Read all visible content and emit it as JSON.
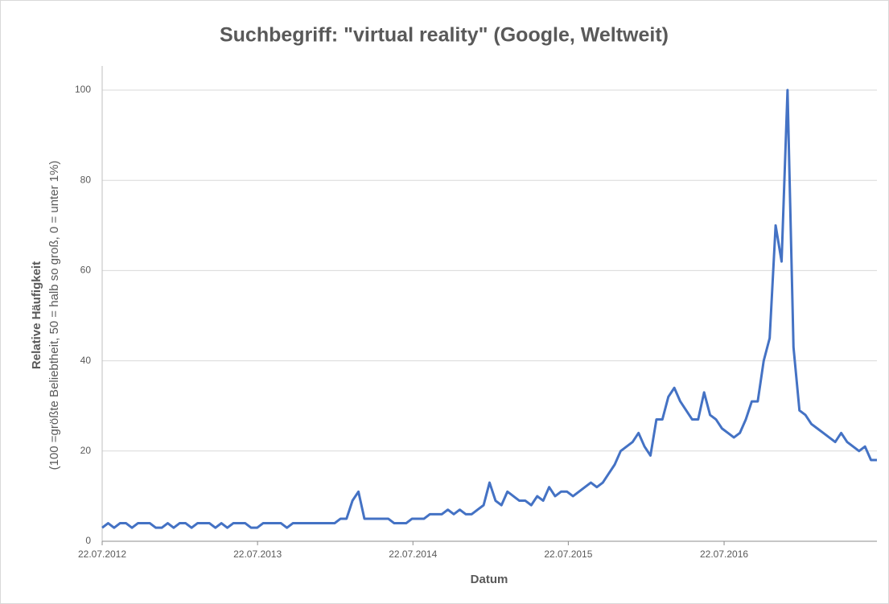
{
  "chart_data": {
    "type": "line",
    "title": "Suchbegriff: \"virtual reality\" (Google, Weltweit)",
    "x_label": "Datum",
    "y_label": "Relative Häufigkeit",
    "y_label_sub": "(100 =größte Beliebtheit, 50 = halb so groß, 0 = unter 1%)",
    "x": [
      "2012-07-22",
      "2012-08-05",
      "2012-08-19",
      "2012-09-02",
      "2012-09-16",
      "2012-09-30",
      "2012-10-14",
      "2012-10-28",
      "2012-11-11",
      "2012-11-25",
      "2012-12-09",
      "2012-12-23",
      "2013-01-06",
      "2013-01-20",
      "2013-02-03",
      "2013-02-17",
      "2013-03-03",
      "2013-03-17",
      "2013-03-31",
      "2013-04-14",
      "2013-04-28",
      "2013-05-12",
      "2013-05-26",
      "2013-06-09",
      "2013-06-23",
      "2013-07-07",
      "2013-07-21",
      "2013-08-04",
      "2013-08-18",
      "2013-09-01",
      "2013-09-15",
      "2013-09-29",
      "2013-10-13",
      "2013-10-27",
      "2013-11-10",
      "2013-11-24",
      "2013-12-08",
      "2013-12-22",
      "2014-01-05",
      "2014-01-19",
      "2014-02-02",
      "2014-02-16",
      "2014-03-02",
      "2014-03-16",
      "2014-03-30",
      "2014-04-13",
      "2014-04-27",
      "2014-05-11",
      "2014-05-25",
      "2014-06-08",
      "2014-06-22",
      "2014-07-06",
      "2014-07-20",
      "2014-08-03",
      "2014-08-17",
      "2014-08-31",
      "2014-09-14",
      "2014-09-28",
      "2014-10-12",
      "2014-10-26",
      "2014-11-09",
      "2014-11-23",
      "2014-12-07",
      "2014-12-21",
      "2015-01-04",
      "2015-01-18",
      "2015-02-01",
      "2015-02-15",
      "2015-03-01",
      "2015-03-15",
      "2015-03-29",
      "2015-04-12",
      "2015-04-26",
      "2015-05-10",
      "2015-05-24",
      "2015-06-07",
      "2015-06-21",
      "2015-07-05",
      "2015-07-19",
      "2015-08-02",
      "2015-08-16",
      "2015-08-30",
      "2015-09-13",
      "2015-09-27",
      "2015-10-11",
      "2015-10-25",
      "2015-11-08",
      "2015-11-22",
      "2015-12-06",
      "2015-12-20",
      "2016-01-03",
      "2016-01-17",
      "2016-01-31",
      "2016-02-14",
      "2016-02-28",
      "2016-03-13",
      "2016-03-27",
      "2016-04-10",
      "2016-04-24",
      "2016-05-08",
      "2016-05-22",
      "2016-06-05",
      "2016-06-19",
      "2016-07-03",
      "2016-07-17",
      "2016-07-31",
      "2016-08-14",
      "2016-08-28",
      "2016-09-11",
      "2016-09-25",
      "2016-10-09",
      "2016-10-23",
      "2016-11-06",
      "2016-11-20",
      "2016-12-04",
      "2016-12-18",
      "2017-01-01",
      "2017-01-15",
      "2017-01-29",
      "2017-02-12",
      "2017-02-26",
      "2017-03-12",
      "2017-03-26",
      "2017-04-09",
      "2017-04-23",
      "2017-05-07",
      "2017-05-21",
      "2017-06-04",
      "2017-06-18",
      "2017-07-02",
      "2017-07-16"
    ],
    "series": [
      {
        "name": "virtual reality",
        "color": "#4472c4",
        "values": [
          3,
          4,
          3,
          4,
          4,
          3,
          4,
          4,
          4,
          3,
          3,
          4,
          3,
          4,
          4,
          3,
          4,
          4,
          4,
          3,
          4,
          3,
          4,
          4,
          4,
          3,
          3,
          4,
          4,
          4,
          4,
          3,
          4,
          4,
          4,
          4,
          4,
          4,
          4,
          4,
          5,
          5,
          9,
          11,
          5,
          5,
          5,
          5,
          5,
          4,
          4,
          4,
          5,
          5,
          5,
          6,
          6,
          6,
          7,
          6,
          7,
          6,
          6,
          7,
          8,
          13,
          9,
          8,
          11,
          10,
          9,
          9,
          8,
          10,
          9,
          12,
          10,
          11,
          11,
          10,
          11,
          12,
          13,
          12,
          13,
          15,
          17,
          20,
          21,
          22,
          24,
          21,
          19,
          27,
          27,
          32,
          34,
          31,
          29,
          27,
          27,
          33,
          28,
          27,
          25,
          24,
          23,
          24,
          27,
          31,
          31,
          40,
          45,
          70,
          62,
          100,
          43,
          29,
          28,
          26,
          25,
          24,
          23,
          22,
          24,
          22,
          21,
          20,
          21,
          18,
          18
        ]
      }
    ],
    "xlim": [
      "2012-07-22",
      "2017-07-16"
    ],
    "xticks": [
      {
        "value": "2012-07-22",
        "label": "22.07.2012"
      },
      {
        "value": "2013-07-22",
        "label": "22.07.2013"
      },
      {
        "value": "2014-07-22",
        "label": "22.07.2014"
      },
      {
        "value": "2015-07-22",
        "label": "22.07.2015"
      },
      {
        "value": "2016-07-22",
        "label": "22.07.2016"
      }
    ],
    "ylim": [
      0,
      100
    ],
    "yticks": [
      0,
      20,
      40,
      60,
      80,
      100
    ],
    "grid": true
  }
}
